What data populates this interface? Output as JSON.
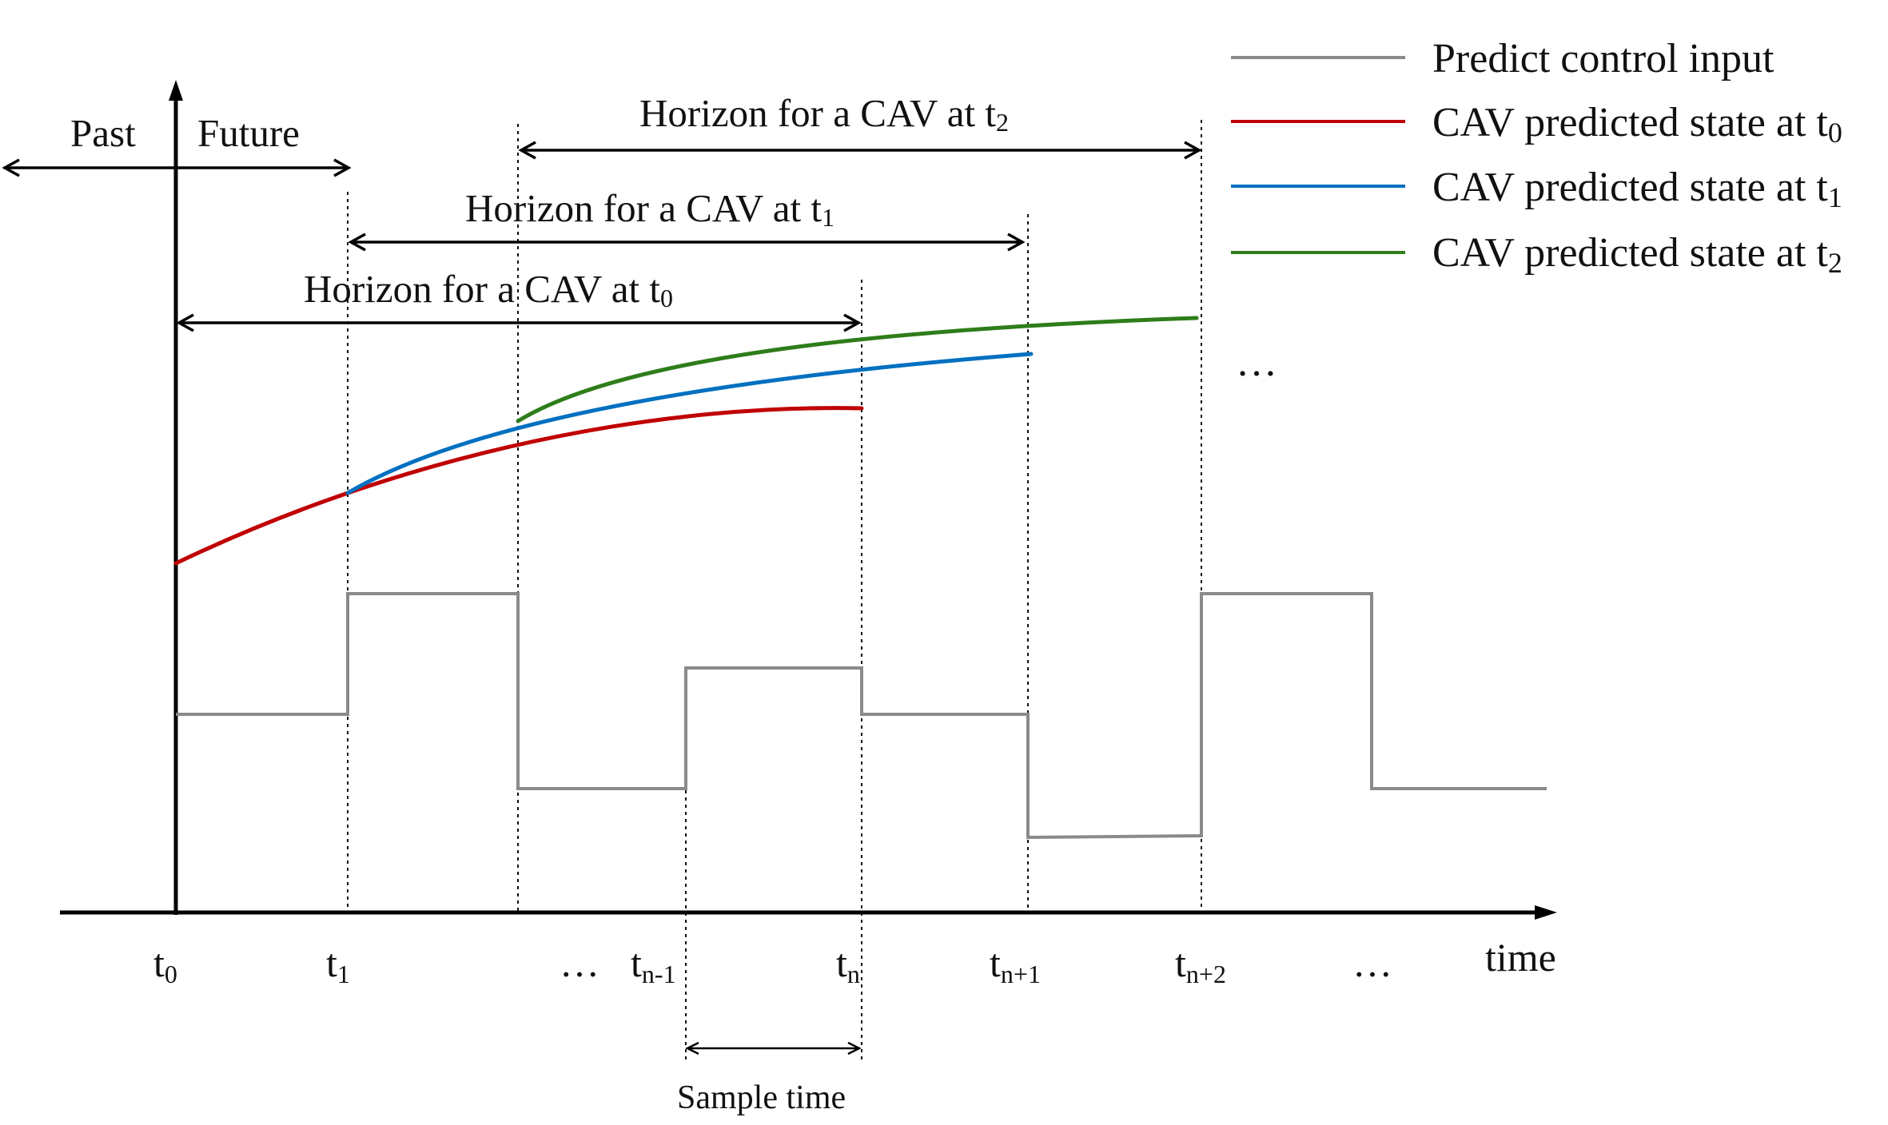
{
  "labels": {
    "past": "Past",
    "future": "Future",
    "sample_time": "Sample time",
    "dots": "…",
    "time": "time"
  },
  "horizons": [
    {
      "text": "Horizon for a CAV at t",
      "sub": "0"
    },
    {
      "text": "Horizon for a CAV at t",
      "sub": "1"
    },
    {
      "text": "Horizon for a CAV at t",
      "sub": "2"
    }
  ],
  "ticks": [
    {
      "base": "t",
      "sub": "0"
    },
    {
      "base": "t",
      "sub": "1"
    },
    {
      "base": "t",
      "sub": "n-1"
    },
    {
      "base": "t",
      "sub": "n"
    },
    {
      "base": "t",
      "sub": "n+1"
    },
    {
      "base": "t",
      "sub": "n+2"
    }
  ],
  "legend": [
    {
      "name": "Predict control input",
      "sub": "",
      "color": "#8a8a8a"
    },
    {
      "name": "CAV predicted state at t",
      "sub": "0",
      "color": "#c00000"
    },
    {
      "name": "CAV predicted state at t",
      "sub": "1",
      "color": "#0070c0"
    },
    {
      "name": "CAV predicted state at t",
      "sub": "2",
      "color": "#2e7d1a"
    }
  ],
  "legend_more": "…",
  "colors": {
    "control": "#8a8a8a",
    "state_t0": "#c00000",
    "state_t1": "#0070c0",
    "state_t2": "#2e7d1a"
  }
}
